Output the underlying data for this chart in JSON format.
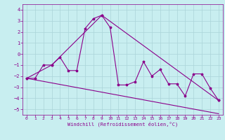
{
  "xlabel": "Windchill (Refroidissement éolien,°C)",
  "background_color": "#c8eef0",
  "line_color": "#8b008b",
  "grid_color": "#aad4d8",
  "xlim": [
    -0.5,
    23.5
  ],
  "ylim": [
    -5.5,
    4.5
  ],
  "xticks": [
    0,
    1,
    2,
    3,
    4,
    5,
    6,
    7,
    8,
    9,
    10,
    11,
    12,
    13,
    14,
    15,
    16,
    17,
    18,
    19,
    20,
    21,
    22,
    23
  ],
  "yticks": [
    -5,
    -4,
    -3,
    -2,
    -1,
    0,
    1,
    2,
    3,
    4
  ],
  "series1_x": [
    0,
    1,
    2,
    3,
    4,
    5,
    6,
    7,
    8,
    9,
    10,
    11,
    12,
    13,
    14,
    15,
    16,
    17,
    18,
    19,
    20,
    21,
    22,
    23
  ],
  "series1_y": [
    -2.2,
    -2.2,
    -1.0,
    -1.0,
    -0.3,
    -1.5,
    -1.5,
    2.3,
    3.2,
    3.5,
    2.4,
    -2.8,
    -2.8,
    -2.5,
    -0.7,
    -2.0,
    -1.4,
    -2.7,
    -2.7,
    -3.8,
    -1.8,
    -1.8,
    -3.1,
    -4.2
  ],
  "series2_x": [
    0,
    3,
    9,
    23
  ],
  "series2_y": [
    -2.2,
    -1.0,
    3.5,
    -4.2
  ],
  "series3_x": [
    0,
    23
  ],
  "series3_y": [
    -2.2,
    -5.4
  ],
  "marker_size": 2.5,
  "line_width": 0.8
}
